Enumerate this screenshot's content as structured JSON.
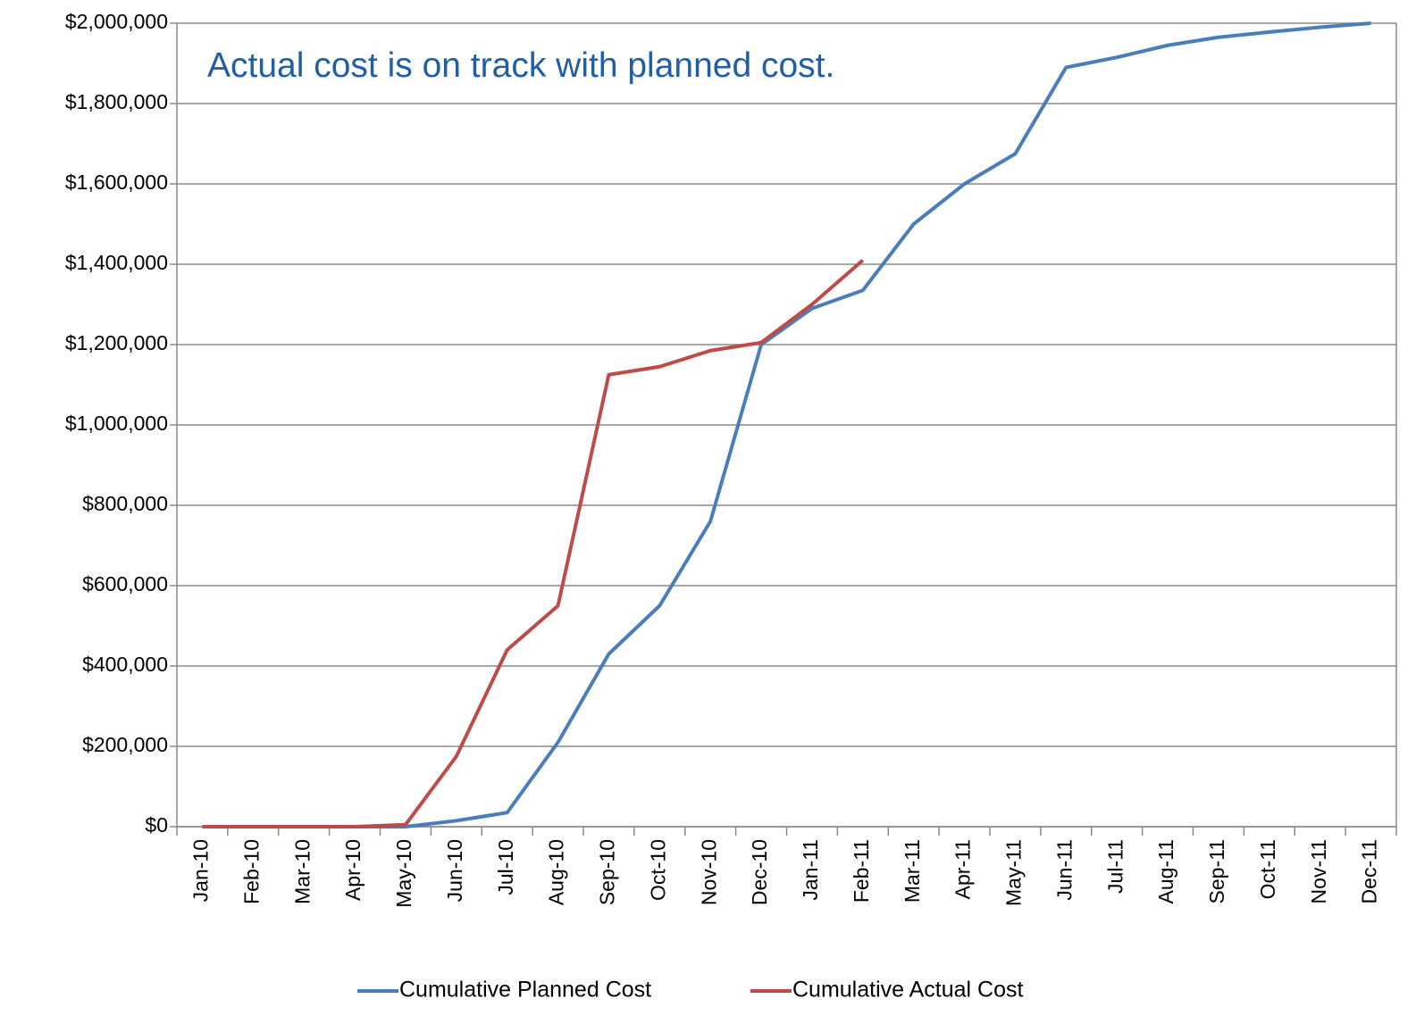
{
  "chart_data": {
    "type": "line",
    "annotation": "Actual cost is on track with planned cost.",
    "categories": [
      "Jan-10",
      "Feb-10",
      "Mar-10",
      "Apr-10",
      "May-10",
      "Jun-10",
      "Jul-10",
      "Aug-10",
      "Sep-10",
      "Oct-10",
      "Nov-10",
      "Dec-10",
      "Jan-11",
      "Feb-11",
      "Mar-11",
      "Apr-11",
      "May-11",
      "Jun-11",
      "Jul-11",
      "Aug-11",
      "Sep-11",
      "Oct-11",
      "Nov-11",
      "Dec-11"
    ],
    "series": [
      {
        "name": "Cumulative Planned Cost",
        "color": "#4a7ebb",
        "values": [
          0,
          0,
          0,
          0,
          0,
          15000,
          35000,
          210000,
          430000,
          550000,
          760000,
          1200000,
          1290000,
          1335000,
          1500000,
          1600000,
          1675000,
          1890000,
          1915000,
          1945000,
          1965000,
          1978000,
          1990000,
          2000000
        ]
      },
      {
        "name": "Cumulative Actual Cost",
        "color": "#be4b48",
        "values": [
          0,
          0,
          0,
          0,
          5000,
          175000,
          440000,
          550000,
          1125000,
          1145000,
          1185000,
          1205000,
          1300000,
          1410000,
          null,
          null,
          null,
          null,
          null,
          null,
          null,
          null,
          null,
          null
        ]
      }
    ],
    "ylim": [
      0,
      2000000
    ],
    "yticks": [
      {
        "value": 0,
        "label": "$0"
      },
      {
        "value": 200000,
        "label": "$200,000"
      },
      {
        "value": 400000,
        "label": "$400,000"
      },
      {
        "value": 600000,
        "label": "$600,000"
      },
      {
        "value": 800000,
        "label": "$800,000"
      },
      {
        "value": 1000000,
        "label": "$1,000,000"
      },
      {
        "value": 1200000,
        "label": "$1,200,000"
      },
      {
        "value": 1400000,
        "label": "$1,400,000"
      },
      {
        "value": 1600000,
        "label": "$1,600,000"
      },
      {
        "value": 1800000,
        "label": "$1,800,000"
      },
      {
        "value": 2000000,
        "label": "$2,000,000"
      }
    ],
    "grid": true,
    "legend": "bottom"
  }
}
